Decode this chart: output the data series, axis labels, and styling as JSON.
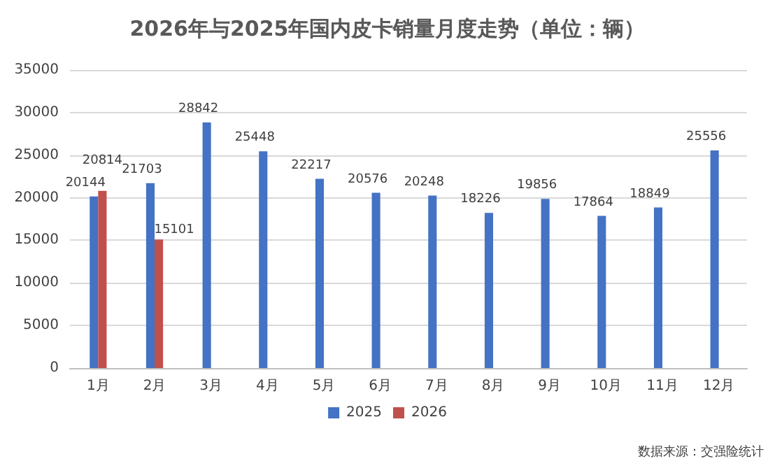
{
  "chart_data": {
    "type": "bar",
    "title": "2026年与2025年国内皮卡销量月度走势（单位：辆）",
    "categories": [
      "1月",
      "2月",
      "3月",
      "4月",
      "5月",
      "6月",
      "7月",
      "8月",
      "9月",
      "10月",
      "11月",
      "12月"
    ],
    "series": [
      {
        "name": "2025",
        "color": "#4472c4",
        "values": [
          20144,
          21703,
          28842,
          25448,
          22217,
          20576,
          20248,
          18226,
          19856,
          17864,
          18849,
          25556
        ]
      },
      {
        "name": "2026",
        "color": "#c0504d",
        "values": [
          20814,
          15101,
          null,
          null,
          null,
          null,
          null,
          null,
          null,
          null,
          null,
          null
        ]
      }
    ],
    "ylim": [
      0,
      35000
    ],
    "yticks": [
      0,
      5000,
      10000,
      15000,
      20000,
      25000,
      30000,
      35000
    ],
    "grid": "y",
    "legend": "bottom",
    "data_labels": true,
    "annotations": [
      "数据来源：交强险统计"
    ]
  }
}
